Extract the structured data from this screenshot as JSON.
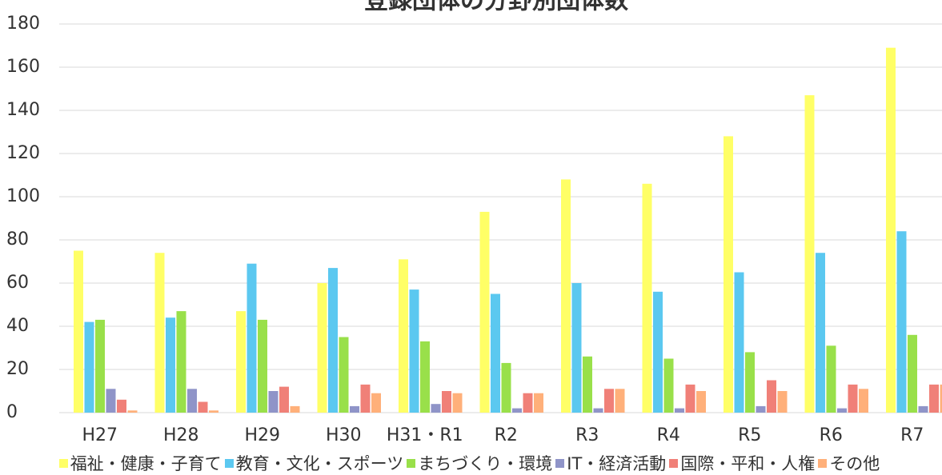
{
  "chart_data": {
    "type": "bar",
    "title": "登録団体の分野別団体数",
    "categories": [
      "H27",
      "H28",
      "H29",
      "H30",
      "H31・R1",
      "R2",
      "R3",
      "R4",
      "R5",
      "R6",
      "R7"
    ],
    "series": [
      {
        "name": "福祉・健康・子育て",
        "color": "#ffff66",
        "values": [
          75,
          74,
          47,
          60,
          71,
          93,
          108,
          106,
          128,
          147,
          169
        ]
      },
      {
        "name": "教育・文化・スポーツ",
        "color": "#5bc8f0",
        "values": [
          42,
          44,
          69,
          67,
          57,
          55,
          60,
          56,
          65,
          74,
          84
        ]
      },
      {
        "name": "まちづくり・環境",
        "color": "#99e04a",
        "values": [
          43,
          47,
          43,
          35,
          33,
          23,
          26,
          25,
          28,
          31,
          36
        ]
      },
      {
        "name": "IT・経済活動",
        "color": "#8f94c8",
        "values": [
          11,
          11,
          10,
          3,
          4,
          2,
          2,
          2,
          3,
          2,
          3
        ]
      },
      {
        "name": "国際・平和・人権",
        "color": "#f08078",
        "values": [
          6,
          5,
          12,
          13,
          10,
          9,
          11,
          13,
          15,
          13,
          13
        ]
      },
      {
        "name": "その他",
        "color": "#ffb07a",
        "values": [
          1,
          1,
          3,
          9,
          9,
          9,
          11,
          10,
          10,
          11,
          13
        ]
      }
    ],
    "ylim": [
      0,
      180
    ],
    "yticks": [
      0,
      20,
      40,
      60,
      80,
      100,
      120,
      140,
      160,
      180
    ],
    "grid": true,
    "legend": "bottom"
  }
}
